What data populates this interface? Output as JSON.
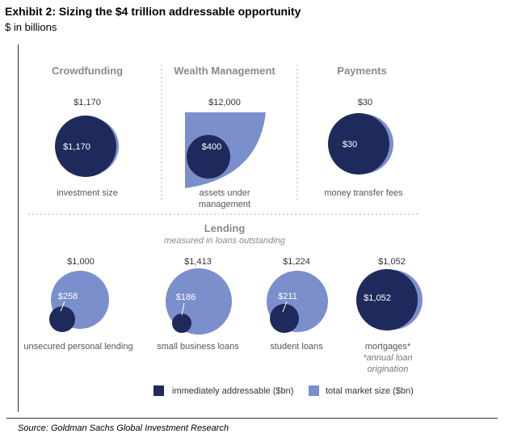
{
  "header": {
    "title": "Exhibit 2: Sizing the $4 trillion addressable opportunity",
    "subtitle": "$ in billions"
  },
  "source": "Source: Goldman Sachs Global Investment Research",
  "colors": {
    "immediately_addressable": "#1f2a5c",
    "total_market": "#7b8fcc",
    "divider": "#a0a0a0"
  },
  "chart_data": {
    "type": "bubble",
    "unit": "$ in billions",
    "series": [
      {
        "name": "immediately addressable ($bn)",
        "color": "#1f2a5c"
      },
      {
        "name": "total market size ($bn)",
        "color": "#7b8fcc"
      }
    ],
    "sections": [
      {
        "title": "",
        "subtitle": "",
        "items": [
          {
            "header": "Crowdfunding",
            "total_label": "$1,170",
            "addressable_label": "$1,170",
            "total": 1170,
            "addressable": 1170,
            "label": "investment size",
            "note": ""
          },
          {
            "header": "Wealth Management",
            "total_label": "$12,000",
            "addressable_label": "$400",
            "total": 12000,
            "addressable": 400,
            "label": "assets under",
            "label2": "management",
            "note": ""
          },
          {
            "header": "Payments",
            "total_label": "$30",
            "addressable_label": "$30",
            "total": 30,
            "addressable": 30,
            "label": "money transfer fees",
            "note": ""
          }
        ]
      },
      {
        "title": "Lending",
        "subtitle": "measured in loans outstanding",
        "items": [
          {
            "header": "",
            "total_label": "$1,000",
            "addressable_label": "$258",
            "total": 1000,
            "addressable": 258,
            "label": "unsecured personal lending",
            "note": ""
          },
          {
            "header": "",
            "total_label": "$1,413",
            "addressable_label": "$186",
            "total": 1413,
            "addressable": 186,
            "label": "small business loans",
            "note": ""
          },
          {
            "header": "",
            "total_label": "$1,224",
            "addressable_label": "$211",
            "total": 1224,
            "addressable": 211,
            "label": "student loans",
            "note": ""
          },
          {
            "header": "",
            "total_label": "$1,052",
            "addressable_label": "$1,052",
            "total": 1052,
            "addressable": 1052,
            "label": "mortgages*",
            "note": "*annual loan",
            "note2": "origination"
          }
        ]
      }
    ],
    "legend": [
      "immediately addressable ($bn)",
      "total market size ($bn)"
    ]
  }
}
